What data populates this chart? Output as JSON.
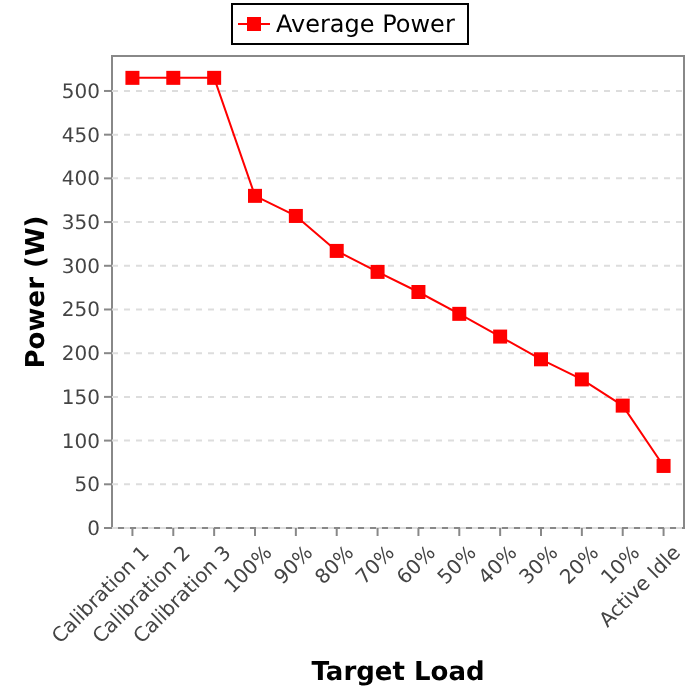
{
  "chart_data": {
    "type": "line",
    "xlabel": "Target Load",
    "ylabel": "Power (W)",
    "categories": [
      "Calibration 1",
      "Calibration 2",
      "Calibration 3",
      "100%",
      "90%",
      "80%",
      "70%",
      "60%",
      "50%",
      "40%",
      "30%",
      "20%",
      "10%",
      "Active Idle"
    ],
    "series": [
      {
        "name": "Average Power",
        "color": "#ff0000",
        "values": [
          515,
          515,
          515,
          380,
          357,
          317,
          293,
          270,
          245,
          219,
          193,
          170,
          140,
          71
        ]
      }
    ],
    "ylim": [
      0,
      540
    ],
    "yticks": [
      0,
      50,
      100,
      150,
      200,
      250,
      300,
      350,
      400,
      450,
      500
    ],
    "grid": "y",
    "legend": "top",
    "marker": "square",
    "line_style": "solid"
  }
}
